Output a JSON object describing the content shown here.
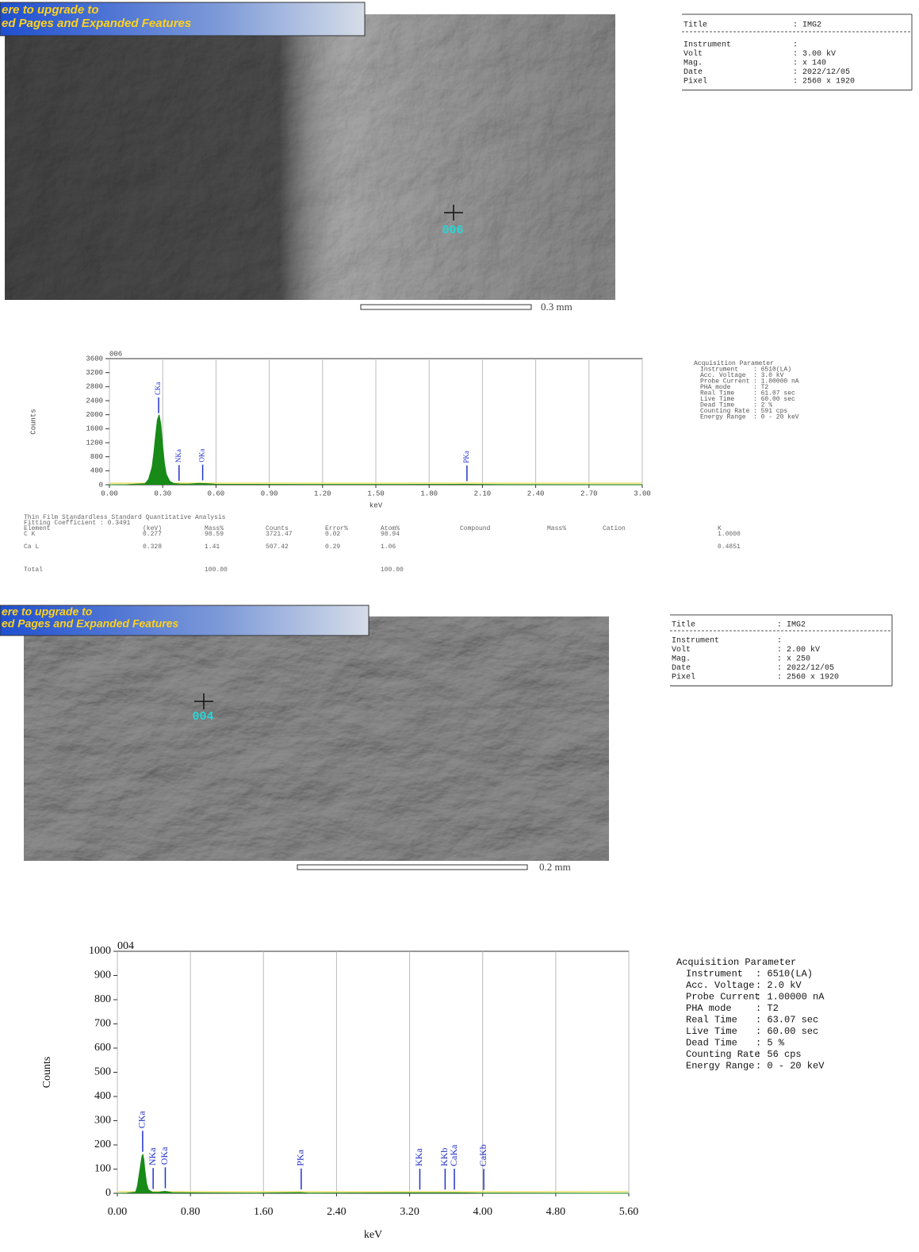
{
  "images": [
    {
      "banner": [
        "ere to upgrade to",
        "ed Pages and Expanded Features"
      ],
      "point_label": "006",
      "scale_label": "0.3 mm"
    },
    {
      "banner": [
        "ere to upgrade to",
        "ed Pages and Expanded Features"
      ],
      "point_label": "004",
      "scale_label": "0.2 mm"
    }
  ],
  "image_info": [
    {
      "title": [
        "Title",
        ": IMG2"
      ],
      "rows": [
        [
          "Instrument",
          ":"
        ],
        [
          "Volt",
          ": 3.00 kV"
        ],
        [
          "Mag.",
          ": x 140"
        ],
        [
          "Date",
          ": 2022/12/05"
        ],
        [
          "Pixel",
          ": 2560 x 1920"
        ]
      ]
    },
    {
      "title": [
        "Title",
        ": IMG2"
      ],
      "rows": [
        [
          "Instrument",
          ":"
        ],
        [
          "Volt",
          ": 2.00 kV"
        ],
        [
          "Mag.",
          ": x 250"
        ],
        [
          "Date",
          ": 2022/12/05"
        ],
        [
          "Pixel",
          ": 2560 x 1920"
        ]
      ]
    }
  ],
  "acquisition": [
    {
      "heading": "Acquisition Parameter",
      "rows": [
        [
          "Instrument",
          ": 6510(LA)"
        ],
        [
          "Acc. Voltage",
          ": 3.0 kV"
        ],
        [
          "Probe Current",
          ": 1.00000 nA"
        ],
        [
          "PHA mode",
          ": T2"
        ],
        [
          "Real Time",
          ": 61.07 sec"
        ],
        [
          "Live Time",
          ": 60.00 sec"
        ],
        [
          "Dead Time",
          ": 2 %"
        ],
        [
          "Counting Rate",
          ": 591 cps"
        ],
        [
          "Energy Range",
          ": 0 - 20 keV"
        ]
      ]
    },
    {
      "heading": "Acquisition Parameter",
      "rows": [
        [
          "Instrument",
          ": 6510(LA)"
        ],
        [
          "Acc. Voltage",
          ": 2.0 kV"
        ],
        [
          "Probe Current",
          ": 1.00000 nA"
        ],
        [
          "PHA mode",
          ": T2"
        ],
        [
          "Real Time",
          ": 63.07 sec"
        ],
        [
          "Live Time",
          ": 60.00 sec"
        ],
        [
          "Dead Time",
          ": 5 %"
        ],
        [
          "Counting Rate",
          ": 56 cps"
        ],
        [
          "Energy Range",
          ": 0 - 20 keV"
        ]
      ]
    }
  ],
  "quant_analysis": {
    "title": "Thin Film Standardless Standard Quantitative Analysis",
    "fitting": "Fitting Coefficient : 0.3491",
    "header": [
      "Element",
      "(keV)",
      "Mass%",
      "Counts",
      "Error%",
      "Atom%",
      "Compound",
      "Mass%",
      "Cation",
      "K"
    ],
    "rows": [
      [
        "C K",
        "0.277",
        "98.59",
        "3721.47",
        "0.02",
        "98.94",
        "1.0000"
      ],
      [
        "Ca L",
        "0.328",
        "1.41",
        "507.42",
        "0.29",
        "1.06",
        "0.4851"
      ],
      [
        "Total",
        "100.00",
        "100.00"
      ]
    ]
  },
  "chart_data": [
    {
      "type": "area",
      "title": "006",
      "x_label": "keV",
      "y_label": "Counts",
      "color": "#178a17",
      "grid": "x",
      "x": [
        0,
        0.1,
        0.2,
        0.22,
        0.24,
        0.25,
        0.26,
        0.27,
        0.28,
        0.29,
        0.3,
        0.31,
        0.32,
        0.34,
        0.36,
        0.4,
        0.45,
        0.5,
        0.55,
        0.6,
        0.8,
        1.5,
        1.95,
        2.0,
        2.05,
        2.2,
        3.0
      ],
      "values": [
        0,
        5,
        30,
        150,
        500,
        900,
        1400,
        1850,
        2000,
        1700,
        1100,
        600,
        300,
        100,
        40,
        20,
        20,
        40,
        30,
        15,
        10,
        8,
        10,
        15,
        10,
        5,
        3
      ],
      "peaks": [
        {
          "label": "CKa",
          "x": 0.277
        },
        {
          "label": "NKa",
          "x": 0.392
        },
        {
          "label": "OKa",
          "x": 0.525
        },
        {
          "label": "PKa",
          "x": 2.013
        }
      ],
      "xlim": [
        0,
        3
      ],
      "ylim": [
        0,
        3600
      ],
      "xticks": [
        {
          "value": 0,
          "label": "0.00"
        },
        {
          "value": 0.3,
          "label": "0.30"
        },
        {
          "value": 0.6,
          "label": "0.60"
        },
        {
          "value": 0.9,
          "label": "0.90"
        },
        {
          "value": 1.2,
          "label": "1.20"
        },
        {
          "value": 1.5,
          "label": "1.50"
        },
        {
          "value": 1.8,
          "label": "1.80"
        },
        {
          "value": 2.1,
          "label": "2.10"
        },
        {
          "value": 2.4,
          "label": "2.40"
        },
        {
          "value": 2.7,
          "label": "2.70"
        },
        {
          "value": 3,
          "label": "3.00"
        }
      ],
      "yticks": [
        0,
        400,
        800,
        1200,
        1600,
        2000,
        2400,
        2800,
        3200,
        3600
      ]
    },
    {
      "type": "area",
      "title": "004",
      "x_label": "keV",
      "y_label": "Counts",
      "color": "#178a17",
      "grid": "x",
      "x": [
        0,
        0.1,
        0.2,
        0.22,
        0.24,
        0.26,
        0.27,
        0.28,
        0.29,
        0.3,
        0.32,
        0.34,
        0.38,
        0.45,
        0.52,
        0.55,
        0.6,
        0.8,
        1.5,
        2.0,
        2.1,
        3.3,
        3.6,
        3.7,
        4.0,
        5.6
      ],
      "values": [
        0,
        1,
        5,
        30,
        80,
        130,
        155,
        160,
        140,
        100,
        40,
        15,
        5,
        4,
        8,
        6,
        3,
        2,
        1,
        3,
        1,
        2,
        2,
        2,
        1,
        0
      ],
      "peaks": [
        {
          "label": "CKa",
          "x": 0.277
        },
        {
          "label": "NKa",
          "x": 0.392
        },
        {
          "label": "OKa",
          "x": 0.525
        },
        {
          "label": "PKa",
          "x": 2.013
        },
        {
          "label": "KKa",
          "x": 3.312
        },
        {
          "label": "KKb",
          "x": 3.589
        },
        {
          "label": "CaKa",
          "x": 3.69
        },
        {
          "label": "CaKb",
          "x": 4.012
        }
      ],
      "xlim": [
        0,
        5.6
      ],
      "ylim": [
        0,
        1000
      ],
      "xticks": [
        {
          "value": 0,
          "label": "0.00"
        },
        {
          "value": 0.8,
          "label": "0.80"
        },
        {
          "value": 1.6,
          "label": "1.60"
        },
        {
          "value": 2.4,
          "label": "2.40"
        },
        {
          "value": 3.2,
          "label": "3.20"
        },
        {
          "value": 4,
          "label": "4.00"
        },
        {
          "value": 4.8,
          "label": "4.80"
        },
        {
          "value": 5.6,
          "label": "5.60"
        }
      ],
      "yticks": [
        0,
        100,
        200,
        300,
        400,
        500,
        600,
        700,
        800,
        900,
        1000
      ]
    }
  ]
}
